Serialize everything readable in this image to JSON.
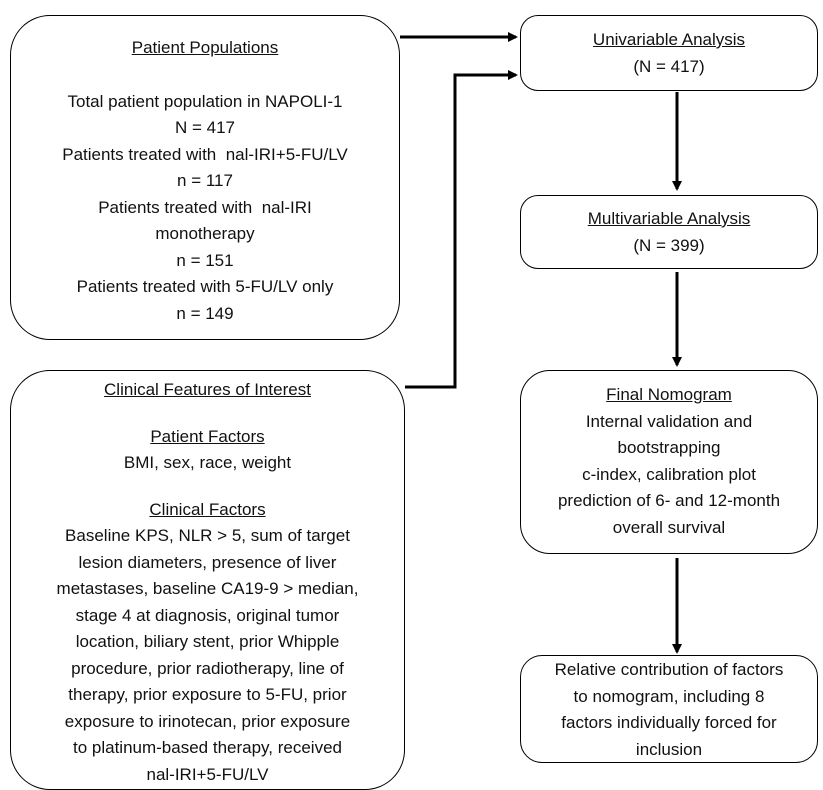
{
  "populations": {
    "title": "Patient Populations",
    "lines": [
      "Total patient population in NAPOLI-1",
      "N = 417",
      "Patients treated with  nal-IRI+5-FU/LV",
      "n = 117",
      "Patients treated with  nal-IRI",
      "monotherapy",
      "n = 151",
      "Patients treated with 5-FU/LV only",
      "n = 149"
    ]
  },
  "clinical": {
    "title": "Clinical Features of Interest",
    "sections": [
      {
        "heading": "Patient Factors",
        "lines": [
          "BMI, sex, race, weight"
        ]
      },
      {
        "heading": "Clinical Factors",
        "lines": [
          "Baseline KPS, NLR > 5, sum of target",
          "lesion diameters, presence of liver",
          "metastases, baseline CA19-9 > median,",
          "stage 4 at diagnosis, original tumor",
          "location, biliary stent, prior Whipple",
          "procedure, prior radiotherapy, line of",
          "therapy, prior exposure to 5-FU, prior",
          "exposure to irinotecan, prior exposure",
          "to platinum-based therapy, received",
          "nal-IRI+5-FU/LV"
        ]
      }
    ]
  },
  "univariable": {
    "title": "Univariable Analysis",
    "lines": [
      "(N = 417)"
    ]
  },
  "multivariable": {
    "title": "Multivariable Analysis",
    "lines": [
      "(N = 399)"
    ]
  },
  "nomogram": {
    "title": "Final Nomogram",
    "lines": [
      "Internal validation and",
      "bootstrapping",
      "c-index, calibration plot",
      "prediction of 6- and 12-month",
      "overall survival"
    ]
  },
  "contribution": {
    "lines": [
      "Relative contribution of factors",
      "to nomogram, including 8",
      "factors individually forced for",
      "inclusion"
    ]
  }
}
